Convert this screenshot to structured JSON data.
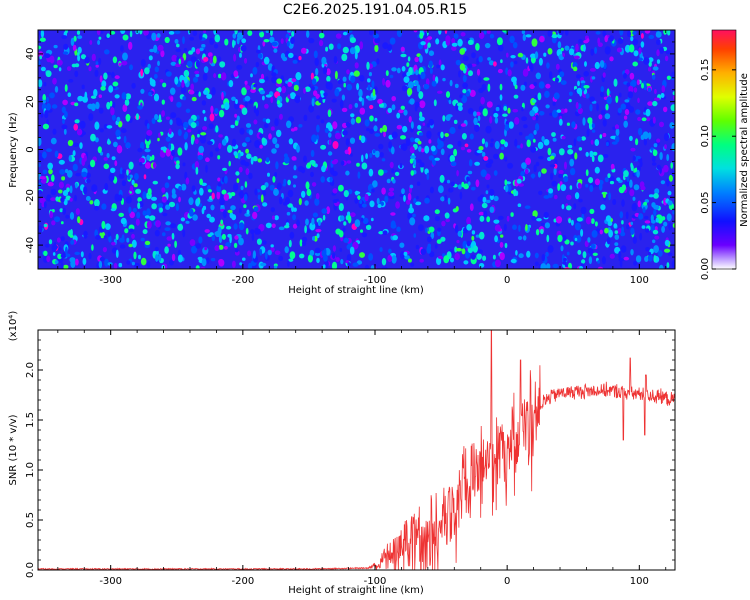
{
  "title": "C2E6.2025.191.04.05.R15",
  "chart_data": [
    {
      "type": "heatmap",
      "title": "",
      "xlabel": "Height of straight line (km)",
      "ylabel": "Frequency (Hz)",
      "xlim": [
        -355,
        127
      ],
      "ylim": [
        -50,
        50
      ],
      "xticks": [
        -300,
        -200,
        -100,
        0,
        100
      ],
      "yticks": [
        -40,
        -20,
        0,
        20,
        40
      ],
      "colorbar": {
        "label": "Normalized spectral amplitude",
        "range": [
          0.0,
          0.18
        ],
        "ticks": [
          "0.00",
          "0.05",
          "0.10",
          "0.15"
        ]
      },
      "description_values": {
        "background_amplitude": 0.03,
        "typical_peak_amplitude": 0.07,
        "max_peak_amplitude": 0.1
      }
    },
    {
      "type": "line",
      "title": "",
      "xlabel": "Height of straight line (km)",
      "ylabel": "SNR (10 * v/v)",
      "y_multiplier": "(x10⁴)",
      "xlim": [
        -355,
        127
      ],
      "ylim": [
        0,
        2.4
      ],
      "xticks": [
        -300,
        -200,
        -100,
        0,
        100
      ],
      "yticks": [
        "0.0",
        "0.5",
        "1.0",
        "1.5",
        "2.0"
      ],
      "color": "#ee3333",
      "series": [
        {
          "x": [
            -355,
            -250,
            -150,
            -105,
            -100,
            -95,
            -90,
            -85,
            -80,
            -75,
            -70,
            -65,
            -60,
            -55,
            -50,
            -45,
            -40,
            -35,
            -30,
            -25,
            -20,
            -15,
            -12,
            -10,
            -8,
            -5,
            0,
            5,
            10,
            12,
            15,
            20,
            25,
            30,
            35,
            40,
            50,
            60,
            70,
            80,
            90,
            95,
            100,
            105,
            110,
            115,
            120,
            127
          ],
          "y": [
            0.01,
            0.01,
            0.01,
            0.02,
            0.05,
            0.1,
            0.15,
            0.2,
            0.25,
            0.3,
            0.35,
            0.38,
            0.42,
            0.48,
            0.55,
            0.62,
            0.7,
            0.8,
            0.9,
            1.0,
            1.05,
            1.1,
            1.15,
            1.1,
            1.2,
            1.25,
            1.3,
            1.35,
            1.4,
            1.45,
            1.5,
            1.58,
            1.65,
            1.7,
            1.75,
            1.77,
            1.78,
            1.79,
            1.8,
            1.79,
            1.78,
            1.77,
            1.76,
            1.75,
            1.74,
            1.73,
            1.72,
            1.7
          ]
        }
      ],
      "spikes": [
        {
          "x": -12,
          "y": 2.4
        },
        {
          "x": 10,
          "y": 2.1
        },
        {
          "x": 93,
          "y": 2.12
        },
        {
          "x": 105,
          "y": 1.95
        },
        {
          "x": 88,
          "y": 1.3
        },
        {
          "x": 104,
          "y": 1.35
        }
      ]
    }
  ]
}
